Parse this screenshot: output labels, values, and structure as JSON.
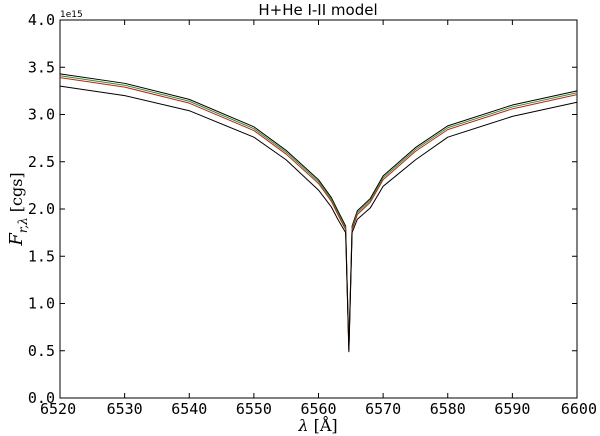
{
  "chart_data": {
    "type": "line",
    "title": "H+He I-II model",
    "xlabel": "λ [Å]",
    "ylabel": "F_r,λ [cgs]",
    "y_offset_label": "1e15",
    "xlim": [
      6520,
      6600
    ],
    "ylim": [
      0.0,
      4.0
    ],
    "xticks": [
      "6520",
      "6530",
      "6540",
      "6550",
      "6560",
      "6570",
      "6580",
      "6590",
      "6600"
    ],
    "yticks": [
      "0.0",
      "0.5",
      "1.0",
      "1.5",
      "2.0",
      "2.5",
      "3.0",
      "3.5",
      "4.0"
    ],
    "grid": false,
    "legend": "none",
    "series": [
      {
        "color": "#000000",
        "x": [
          6520,
          6530,
          6540,
          6550,
          6555,
          6560,
          6562,
          6563,
          6564.2,
          6564.7,
          6565.2,
          6566,
          6568,
          6570,
          6575,
          6580,
          6590,
          6600
        ],
        "y": [
          3.43,
          3.33,
          3.16,
          2.87,
          2.62,
          2.31,
          2.12,
          1.98,
          1.82,
          0.53,
          1.82,
          1.98,
          2.11,
          2.35,
          2.65,
          2.88,
          3.1,
          3.25
        ]
      },
      {
        "color": "#3a8a2a",
        "x": [
          6520,
          6530,
          6540,
          6550,
          6555,
          6560,
          6562,
          6563,
          6564.2,
          6564.7,
          6565.2,
          6566,
          6568,
          6570,
          6575,
          6580,
          6590,
          6600
        ],
        "y": [
          3.41,
          3.31,
          3.14,
          2.85,
          2.6,
          2.29,
          2.1,
          1.96,
          1.8,
          0.52,
          1.8,
          1.96,
          2.09,
          2.33,
          2.63,
          2.86,
          3.08,
          3.23
        ]
      },
      {
        "color": "#b22a1a",
        "x": [
          6520,
          6530,
          6540,
          6550,
          6555,
          6560,
          6562,
          6563,
          6564.2,
          6564.7,
          6565.2,
          6566,
          6568,
          6570,
          6575,
          6580,
          6590,
          6600
        ],
        "y": [
          3.39,
          3.29,
          3.12,
          2.83,
          2.58,
          2.27,
          2.08,
          1.94,
          1.78,
          0.5,
          1.78,
          1.94,
          2.07,
          2.31,
          2.61,
          2.84,
          3.06,
          3.21
        ]
      },
      {
        "color": "#000000",
        "x": [
          6520,
          6530,
          6540,
          6550,
          6555,
          6560,
          6562,
          6563,
          6564.2,
          6564.7,
          6565.2,
          6566,
          6568,
          6570,
          6575,
          6580,
          6590,
          6600
        ],
        "y": [
          3.3,
          3.2,
          3.04,
          2.76,
          2.52,
          2.2,
          2.02,
          1.89,
          1.75,
          0.49,
          1.75,
          1.89,
          2.01,
          2.24,
          2.52,
          2.76,
          2.98,
          3.13
        ]
      }
    ]
  }
}
